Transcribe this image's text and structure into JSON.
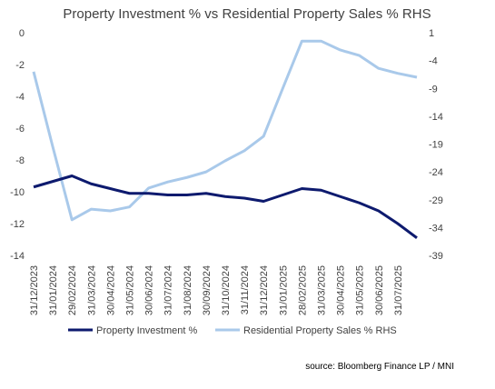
{
  "chart_data": {
    "type": "line",
    "title": "Property Investment % vs Residential Property Sales %  RHS",
    "source": "source: Bloomberg Finance LP / MNI",
    "categories": [
      "31/12/2023",
      "31/01/2024",
      "29/02/2024",
      "31/03/2024",
      "30/04/2024",
      "31/05/2024",
      "30/06/2024",
      "31/07/2024",
      "31/08/2024",
      "30/09/2024",
      "31/10/2024",
      "31/11/2024",
      "31/12/2024",
      "31/01/2025",
      "28/02/2025",
      "31/03/2025",
      "30/04/2025",
      "31/05/2025",
      "30/06/2025",
      "31/07/2025",
      null
    ],
    "series": [
      {
        "name": "Property Investment %",
        "color": "#0d1a6e",
        "axis": "y",
        "values": [
          -9.7,
          -9.35,
          -9.0,
          -9.5,
          -9.8,
          -10.1,
          -10.1,
          -10.2,
          -10.2,
          -10.1,
          -10.3,
          -10.4,
          -10.6,
          -10.2,
          -9.8,
          -9.9,
          -10.3,
          -10.7,
          -11.2,
          -12.0,
          -12.9
        ]
      },
      {
        "name": "Residential Property Sales % RHS",
        "color": "#a9c9ea",
        "axis": "y2",
        "values": [
          -6,
          -19.5,
          -32.6,
          -30.7,
          -31,
          -30.3,
          -26.9,
          -25.8,
          -25,
          -24,
          -22,
          -20.2,
          -17.6,
          -9,
          -0.5,
          -0.5,
          -2.1,
          -3.1,
          -5.4,
          -6.3,
          -7
        ]
      }
    ],
    "ylim": [
      -14,
      0
    ],
    "yticks": [
      0,
      -2,
      -4,
      -6,
      -8,
      -10,
      -12,
      -14
    ],
    "y2lim": [
      -39,
      1
    ],
    "y2ticks": [
      1,
      -4,
      -9,
      -14,
      -19,
      -24,
      -29,
      -34,
      -39
    ],
    "grid": false
  }
}
